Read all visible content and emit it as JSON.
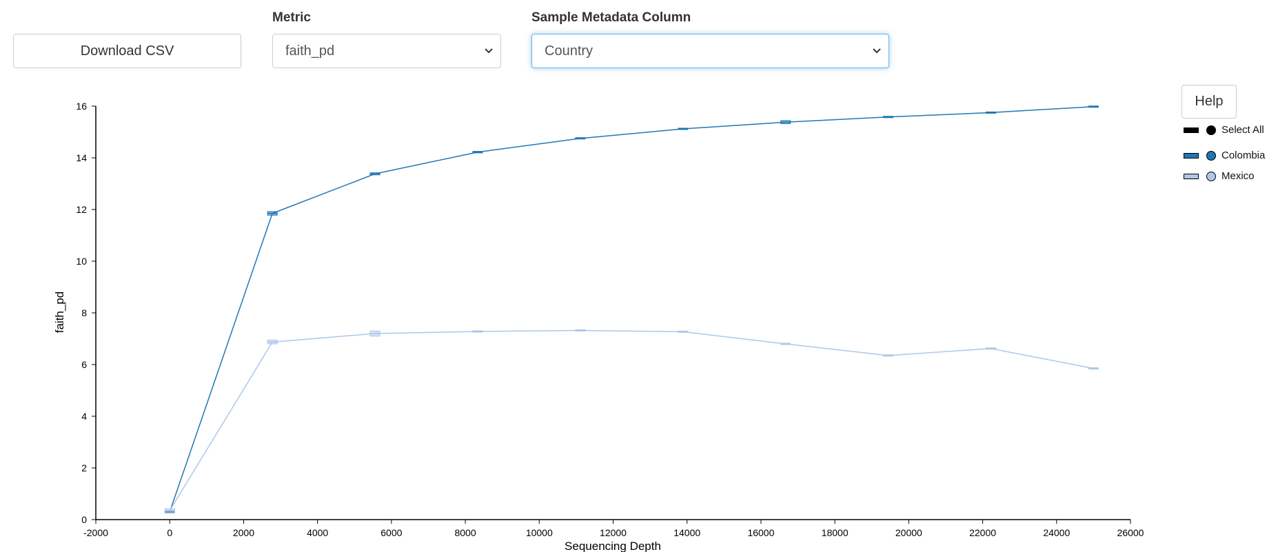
{
  "controls": {
    "download_label": "Download CSV",
    "metric_label": "Metric",
    "metric_value": "faith_pd",
    "column_label": "Sample Metadata Column",
    "column_value": "Country",
    "help_label": "Help"
  },
  "legend": {
    "items": [
      {
        "label": "Select All",
        "color": "#000000"
      },
      {
        "label": "Colombia",
        "color": "#1f77b4"
      },
      {
        "label": "Mexico",
        "color": "#aec7e8"
      }
    ]
  },
  "chart_data": {
    "type": "line",
    "xlabel": "Sequencing Depth",
    "ylabel": "faith_pd",
    "xlim": [
      -2000,
      26000
    ],
    "ylim": [
      0,
      16
    ],
    "xticks": [
      -2000,
      0,
      2000,
      4000,
      6000,
      8000,
      10000,
      12000,
      14000,
      16000,
      18000,
      20000,
      22000,
      24000,
      26000
    ],
    "yticks": [
      0,
      2,
      4,
      6,
      8,
      10,
      12,
      14,
      16
    ],
    "series": [
      {
        "name": "Colombia",
        "color": "#1f77b4",
        "x": [
          0,
          2778,
          5556,
          8333,
          11111,
          13889,
          16667,
          19444,
          22222,
          25000
        ],
        "y": [
          0.3,
          11.85,
          13.38,
          14.22,
          14.75,
          15.12,
          15.38,
          15.58,
          15.75,
          15.98
        ],
        "q1": [
          0.27,
          11.78,
          13.34,
          14.19,
          14.73,
          15.1,
          15.32,
          15.56,
          15.73,
          15.96
        ],
        "q3": [
          0.33,
          11.92,
          13.42,
          14.25,
          14.78,
          15.14,
          15.44,
          15.6,
          15.77,
          16.0
        ]
      },
      {
        "name": "Mexico",
        "color": "#aec7e8",
        "x": [
          0,
          2778,
          5556,
          8333,
          11111,
          13889,
          16667,
          19444,
          22222,
          25000
        ],
        "y": [
          0.35,
          6.87,
          7.2,
          7.28,
          7.32,
          7.27,
          6.8,
          6.35,
          6.62,
          5.85
        ],
        "q1": [
          0.25,
          6.8,
          7.1,
          7.27,
          7.31,
          7.26,
          6.79,
          6.34,
          6.61,
          5.84
        ],
        "q3": [
          0.42,
          6.95,
          7.3,
          7.29,
          7.33,
          7.28,
          6.81,
          6.36,
          6.63,
          5.86
        ]
      }
    ]
  }
}
